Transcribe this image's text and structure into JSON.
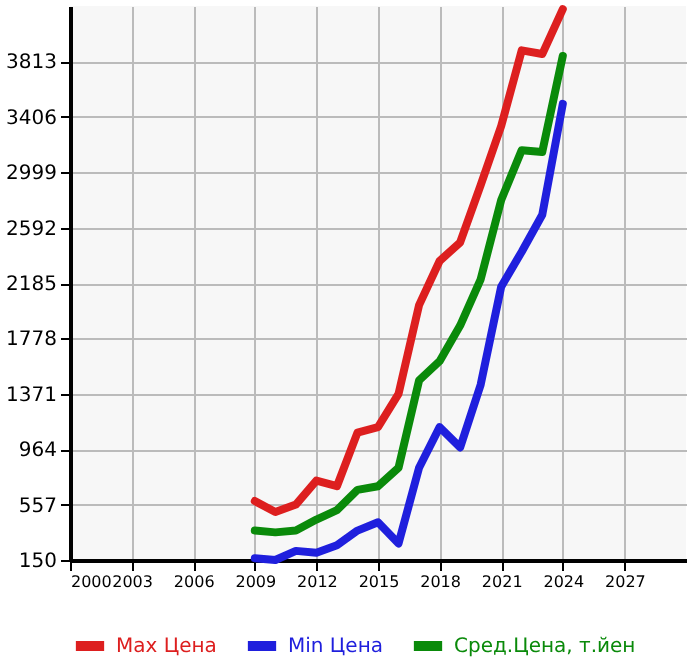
{
  "chart_data": {
    "type": "line",
    "x": [
      2009,
      2010,
      2011,
      2012,
      2013,
      2014,
      2015,
      2016,
      2017,
      2018,
      2019,
      2020,
      2021,
      2022,
      2023,
      2024
    ],
    "series": [
      {
        "name": "Max Цена",
        "color": "#dd1f1f",
        "values": [
          583,
          502,
          557,
          733,
          692,
          1086,
          1126,
          1371,
          2022,
          2347,
          2483,
          2904,
          3338,
          3894,
          3867,
          4197
        ]
      },
      {
        "name": "Min Цена",
        "color": "#1f1fdd",
        "values": [
          163,
          150,
          217,
          204,
          258,
          366,
          427,
          271,
          828,
          1126,
          977,
          1438,
          2158,
          2415,
          2686,
          3501
        ]
      },
      {
        "name": "Сред.Цена, т.йен",
        "color": "#0a8a0a",
        "values": [
          366,
          353,
          366,
          447,
          516,
          665,
          692,
          828,
          1469,
          1611,
          1872,
          2212,
          2795,
          3161,
          3148,
          3853
        ]
      }
    ],
    "xlim": [
      2000,
      2030
    ],
    "xticks": [
      2000,
      2003,
      2006,
      2009,
      2012,
      2015,
      2018,
      2021,
      2024,
      2027
    ],
    "ylim": [
      150,
      4220
    ],
    "yticks": [
      150,
      557,
      964,
      1371,
      1778,
      2185,
      2592,
      2999,
      3406,
      3813
    ],
    "grid": true,
    "legend": "bottom",
    "marker": "none",
    "line_style": "solid"
  }
}
